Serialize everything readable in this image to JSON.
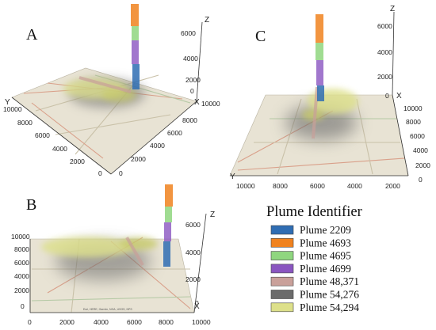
{
  "panels": [
    {
      "letter": "A",
      "z_ticks": [
        "6000",
        "4000",
        "2000",
        "0"
      ],
      "x_ticks": [
        "10000",
        "8000",
        "6000",
        "4000",
        "2000",
        "0"
      ],
      "y_ticks": [
        "10000",
        "8000",
        "6000",
        "4000",
        "2000",
        "0"
      ],
      "z_label": "Z",
      "x_label": "X",
      "y_label": "Y"
    },
    {
      "letter": "B",
      "z_ticks": [
        "6000",
        "4000",
        "2000",
        "0"
      ],
      "x_ticks": [
        "0",
        "2000",
        "4000",
        "6000",
        "8000",
        "10000"
      ],
      "y_ticks": [
        "10000",
        "8000",
        "6000",
        "4000",
        "2000",
        "0"
      ],
      "z_label": "Z",
      "x_label": "X",
      "y_label": ""
    },
    {
      "letter": "C",
      "z_ticks": [
        "6000",
        "4000",
        "2000",
        "0"
      ],
      "x_ticks": [
        "10000",
        "8000",
        "6000",
        "4000",
        "2000"
      ],
      "y_ticks": [
        "10000",
        "8000",
        "6000",
        "4000",
        "2000",
        "0"
      ],
      "z_label": "Z",
      "x_label": "X",
      "y_label": "Y"
    }
  ],
  "legend": {
    "title": "Plume Identifier",
    "items": [
      {
        "label": "Plume 2209",
        "color": "#2f6db3"
      },
      {
        "label": "Plume 4693",
        "color": "#f0821e"
      },
      {
        "label": "Plume 4695",
        "color": "#8fd67f"
      },
      {
        "label": "Plume 4699",
        "color": "#8a55c0"
      },
      {
        "label": "Plume 48,371",
        "color": "#c9a09a"
      },
      {
        "label": "Plume 54,276",
        "color": "#6b6b6b"
      },
      {
        "label": "Plume 54,294",
        "color": "#dde08a"
      }
    ]
  },
  "attribution": "Esri, HERE, Garmin, NGA, USGS, NPS"
}
